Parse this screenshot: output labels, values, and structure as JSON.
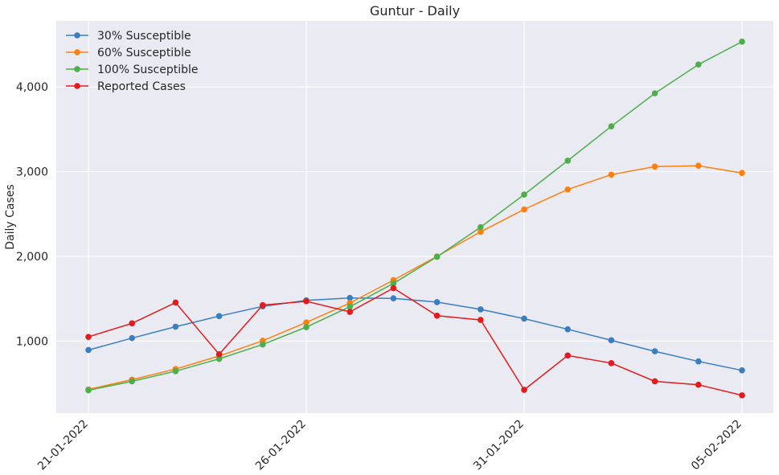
{
  "chart_data": {
    "type": "line",
    "title": "Guntur - Daily",
    "xlabel": "",
    "ylabel": "Daily Cases",
    "x": [
      "21-01-2022",
      "22-01-2022",
      "23-01-2022",
      "24-01-2022",
      "25-01-2022",
      "26-01-2022",
      "27-01-2022",
      "28-01-2022",
      "29-01-2022",
      "30-01-2022",
      "31-01-2022",
      "01-02-2022",
      "02-02-2022",
      "03-02-2022",
      "04-02-2022",
      "05-02-2022"
    ],
    "x_ticks": [
      "21-01-2022",
      "26-01-2022",
      "31-01-2022",
      "05-02-2022"
    ],
    "y_ticks": [
      1000,
      2000,
      3000,
      4000
    ],
    "y_tick_labels": [
      "1,000",
      "2,000",
      "3,000",
      "4,000"
    ],
    "ylim": [
      150,
      4780
    ],
    "grid": true,
    "legend_position": "top-left",
    "series": [
      {
        "name": "30% Susceptible",
        "color": "#3a7ebf",
        "values": [
          895,
          1035,
          1170,
          1295,
          1410,
          1480,
          1510,
          1505,
          1460,
          1375,
          1265,
          1140,
          1010,
          880,
          760,
          655
        ]
      },
      {
        "name": "60% Susceptible",
        "color": "#ff7f0e",
        "values": [
          430,
          545,
          670,
          825,
          1005,
          1220,
          1450,
          1720,
          2000,
          2290,
          2555,
          2790,
          2965,
          3060,
          3070,
          2985
        ]
      },
      {
        "name": "100% Susceptible",
        "color": "#4daf4a",
        "values": [
          420,
          525,
          645,
          790,
          960,
          1165,
          1405,
          1680,
          1995,
          2345,
          2730,
          3130,
          3535,
          3925,
          4265,
          4535
        ]
      },
      {
        "name": "Reported Cases",
        "color": "#e41a1c",
        "values": [
          1050,
          1210,
          1455,
          845,
          1425,
          1470,
          1345,
          1625,
          1300,
          1250,
          425,
          830,
          740,
          525,
          485,
          360
        ]
      }
    ]
  }
}
